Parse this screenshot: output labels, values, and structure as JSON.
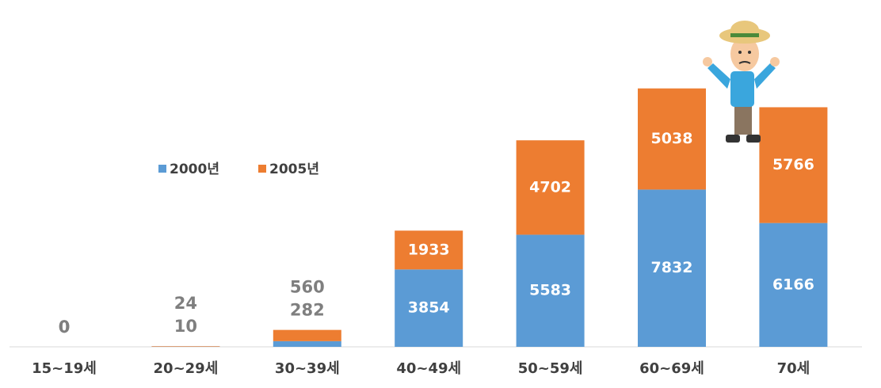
{
  "chart_data": {
    "type": "stacked_bar",
    "categories": [
      "15~19세",
      "20~29세",
      "30~39세",
      "40~49세",
      "50~59세",
      "60~69세",
      "70세"
    ],
    "series": [
      {
        "name": "2000년",
        "color": "#5b9bd5",
        "values": [
          0,
          10,
          282,
          3854,
          5583,
          7832,
          6166
        ]
      },
      {
        "name": "2005년",
        "color": "#ed7d31",
        "values": [
          0,
          24,
          560,
          1933,
          4702,
          5038,
          5766
        ]
      }
    ],
    "ylim": [
      0,
      14000
    ]
  }
}
